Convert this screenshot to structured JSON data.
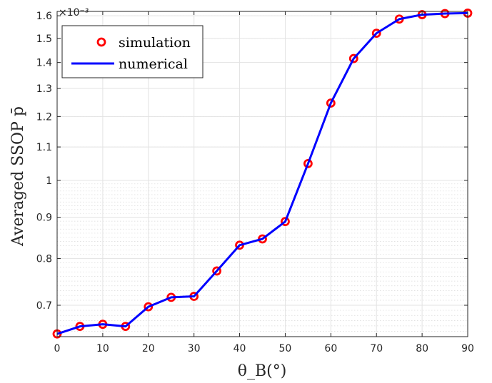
{
  "chart_data": {
    "type": "line",
    "title": "",
    "xlabel": "θ_B(°)",
    "ylabel": "Averaged SSOP p̄",
    "y_multiplier": "×10⁻³",
    "x": [
      0,
      5,
      10,
      15,
      20,
      25,
      30,
      35,
      40,
      45,
      50,
      55,
      60,
      65,
      70,
      75,
      80,
      85,
      90
    ],
    "series": [
      {
        "name": "simulation",
        "style": "markers",
        "color": "#ff0000",
        "values": [
          0.645,
          0.659,
          0.663,
          0.659,
          0.697,
          0.716,
          0.718,
          0.772,
          0.831,
          0.846,
          0.889,
          1.049,
          1.247,
          1.416,
          1.522,
          1.585,
          1.605,
          1.61,
          1.612
        ]
      },
      {
        "name": "numerical",
        "style": "line",
        "color": "#0000ff",
        "values": [
          0.645,
          0.659,
          0.663,
          0.659,
          0.697,
          0.716,
          0.718,
          0.772,
          0.831,
          0.846,
          0.889,
          1.049,
          1.247,
          1.416,
          1.522,
          1.585,
          1.605,
          1.61,
          1.612
        ]
      }
    ],
    "xlim": [
      0,
      90
    ],
    "ylim": [
      0.64,
      1.62
    ],
    "yscale": "log",
    "xticks": [
      0,
      10,
      20,
      30,
      40,
      50,
      60,
      70,
      80,
      90
    ],
    "xtick_labels": [
      "0",
      "10",
      "20",
      "30",
      "40",
      "50",
      "60",
      "70",
      "80",
      "90"
    ],
    "yticks": [
      0.7,
      0.8,
      0.9,
      1.0,
      1.1,
      1.2,
      1.3,
      1.4,
      1.5,
      1.6
    ],
    "ytick_labels": [
      "0.7",
      "0.8",
      "0.9",
      "1",
      "1.1",
      "1.2",
      "1.3",
      "1.4",
      "1.5",
      "1.6"
    ],
    "grid": true,
    "legend_position": "top-left"
  }
}
